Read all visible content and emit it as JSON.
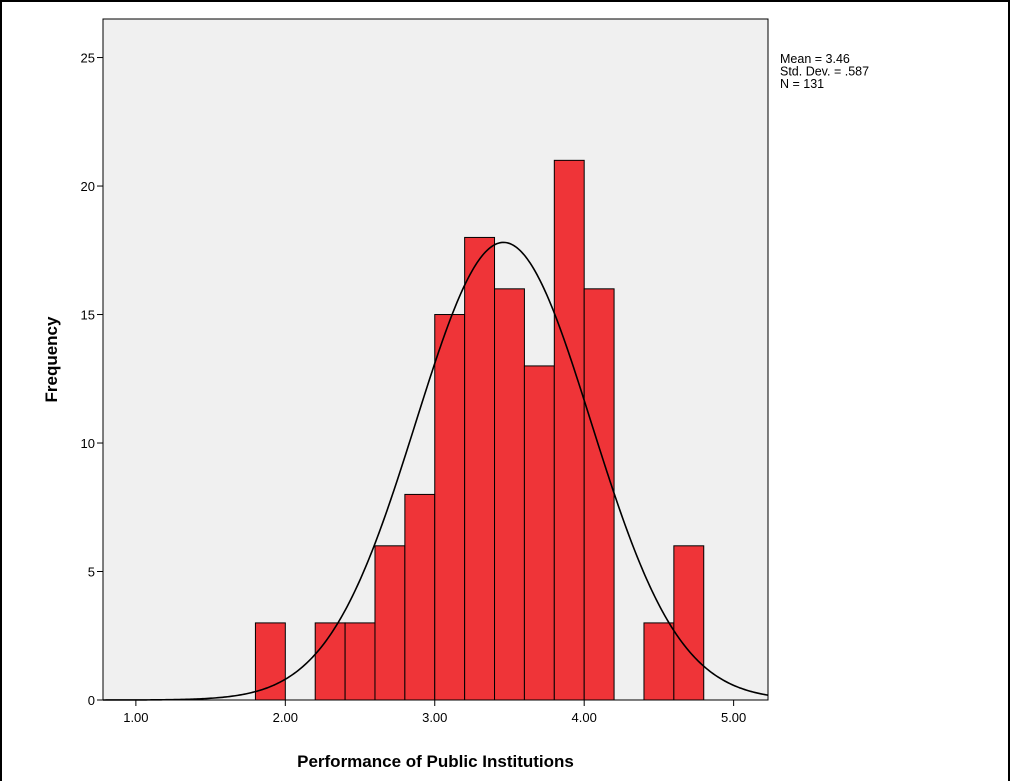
{
  "chart_data": {
    "type": "bar",
    "subtype": "histogram",
    "xlabel": "Performance of Public Institutions",
    "ylabel": "Frequency",
    "xlim": [
      0.78,
      5.23
    ],
    "ylim": [
      0,
      26.5
    ],
    "xticks": [
      "1.00",
      "2.00",
      "3.00",
      "4.00",
      "5.00"
    ],
    "xtick_values": [
      1,
      2,
      3,
      4,
      5
    ],
    "yticks": [
      "0",
      "5",
      "10",
      "15",
      "20",
      "25"
    ],
    "ytick_values": [
      0,
      5,
      10,
      15,
      20,
      25
    ],
    "bins": [
      {
        "start": 1.8,
        "end": 2.0,
        "count": 3
      },
      {
        "start": 2.2,
        "end": 2.4,
        "count": 3
      },
      {
        "start": 2.4,
        "end": 2.6,
        "count": 3
      },
      {
        "start": 2.6,
        "end": 2.8,
        "count": 6
      },
      {
        "start": 2.8,
        "end": 3.0,
        "count": 8
      },
      {
        "start": 3.0,
        "end": 3.2,
        "count": 15
      },
      {
        "start": 3.2,
        "end": 3.4,
        "count": 18
      },
      {
        "start": 3.4,
        "end": 3.6,
        "count": 16
      },
      {
        "start": 3.6,
        "end": 3.8,
        "count": 13
      },
      {
        "start": 3.8,
        "end": 4.0,
        "count": 21
      },
      {
        "start": 4.0,
        "end": 4.2,
        "count": 16
      },
      {
        "start": 4.4,
        "end": 4.6,
        "count": 3
      },
      {
        "start": 4.6,
        "end": 4.8,
        "count": 6
      }
    ],
    "normal_curve": {
      "mean": 3.46,
      "sd": 0.587,
      "n": 131,
      "bin_width": 0.2
    },
    "stats_lines": [
      "Mean = 3.46",
      "Std. Dev. = .587",
      "N = 131"
    ],
    "grid": false,
    "colors": {
      "bar_fill": "#ef3438",
      "bar_stroke": "#000000",
      "plot_background": "#f0f0f0",
      "curve": "#000000"
    }
  }
}
